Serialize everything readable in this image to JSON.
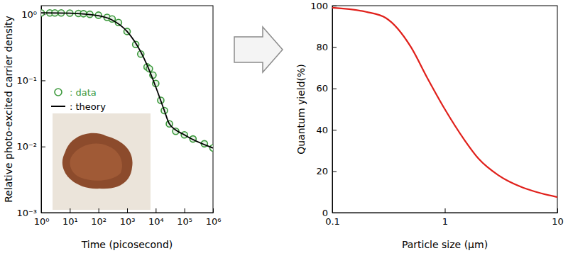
{
  "chart_data": [
    {
      "type": "line",
      "xlabel": "Time (picosecond)",
      "ylabel": "Relative photo-excited carrier density",
      "log": true,
      "xlim": [
        1,
        1000000
      ],
      "ylim": [
        0.001,
        1.35
      ],
      "xticks": [
        {
          "value": 1,
          "label": "10⁰"
        },
        {
          "value": 10,
          "label": "10¹"
        },
        {
          "value": 100,
          "label": "10²"
        },
        {
          "value": 1000,
          "label": "10³"
        },
        {
          "value": 10000,
          "label": "10⁴"
        },
        {
          "value": 100000,
          "label": "10⁵"
        },
        {
          "value": 1000000,
          "label": "10⁶"
        }
      ],
      "yticks": [
        {
          "value": 0.001,
          "label": "10⁻³"
        },
        {
          "value": 0.01,
          "label": "10⁻²"
        },
        {
          "value": 0.1,
          "label": "10⁻¹"
        },
        {
          "value": 1,
          "label": "10⁰"
        }
      ],
      "grid": false,
      "legend": "center left",
      "series": [
        {
          "name": ": data",
          "type": "scatter",
          "marker": "circle",
          "color": "#3a983a",
          "x": [
            1,
            2,
            3,
            5,
            10,
            20,
            30,
            50,
            100,
            200,
            300,
            500,
            1000,
            2000,
            3000,
            5000,
            6000,
            8000,
            10000,
            15000,
            20000,
            30000,
            50000,
            100000,
            200000,
            500000,
            1000000
          ],
          "values": [
            1.05,
            1.05,
            1.05,
            1.05,
            1.04,
            1.03,
            1.02,
            1.0,
            0.97,
            0.9,
            0.85,
            0.75,
            0.55,
            0.35,
            0.25,
            0.16,
            0.15,
            0.12,
            0.09,
            0.05,
            0.035,
            0.022,
            0.017,
            0.015,
            0.013,
            0.011,
            0.0095
          ]
        },
        {
          "name": ": theory",
          "type": "line",
          "line_style": "solid",
          "color": "#000000",
          "x": [
            1,
            10,
            100,
            300,
            1000,
            3000,
            5000,
            10000,
            20000,
            30000,
            100000,
            1000000
          ],
          "values": [
            1.05,
            1.04,
            0.95,
            0.82,
            0.55,
            0.27,
            0.17,
            0.08,
            0.035,
            0.022,
            0.015,
            0.0095
          ]
        }
      ]
    },
    {
      "type": "line",
      "xlabel": "Particle size (μm)",
      "ylabel": "Quantum yield(%)",
      "log": "x",
      "xlim": [
        0.1,
        10
      ],
      "ylim": [
        0,
        100
      ],
      "xticks": [
        0.1,
        1,
        10
      ],
      "yticks": [
        0,
        20,
        40,
        60,
        80,
        100
      ],
      "grid": false,
      "series": [
        {
          "type": "line",
          "line_style": "solid",
          "color": "#e0201b",
          "x": [
            0.1,
            0.2,
            0.3,
            0.5,
            0.7,
            1,
            1.5,
            2,
            3,
            5,
            7,
            10
          ],
          "values": [
            99,
            97,
            94,
            80,
            65,
            50,
            35,
            26,
            18,
            12,
            9.5,
            7.5
          ]
        }
      ]
    }
  ]
}
